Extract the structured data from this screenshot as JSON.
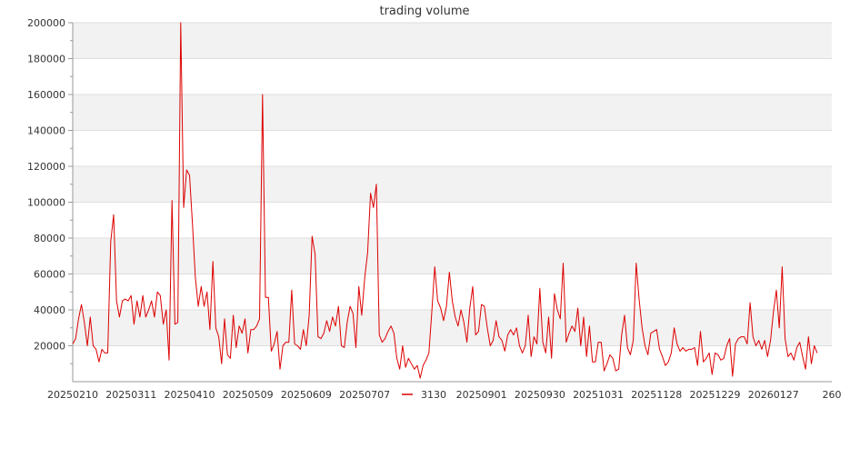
{
  "chart_data": {
    "type": "line",
    "title": "trading volume",
    "xlabel": "",
    "ylabel": "",
    "ylim": [
      0,
      200000
    ],
    "yticks": [
      20000,
      40000,
      60000,
      80000,
      100000,
      120000,
      140000,
      160000,
      180000,
      200000
    ],
    "xlim": [
      0,
      260
    ],
    "xtick_labels": [
      {
        "i": 0,
        "label": "20250210"
      },
      {
        "i": 20,
        "label": "20250311"
      },
      {
        "i": 40,
        "label": "20250410"
      },
      {
        "i": 60,
        "label": "20250509"
      },
      {
        "i": 80,
        "label": "20250609"
      },
      {
        "i": 100,
        "label": "20250707"
      },
      {
        "i": 140,
        "label": "20250901"
      },
      {
        "i": 160,
        "label": "20250930"
      },
      {
        "i": 180,
        "label": "20251031"
      },
      {
        "i": 200,
        "label": "20251128"
      },
      {
        "i": 220,
        "label": "20251229"
      },
      {
        "i": 240,
        "label": "20260127"
      },
      {
        "i": 260,
        "label": "260"
      }
    ],
    "grid": true,
    "legend_position": "bottom-center",
    "colors": {
      "line": "#dd0000",
      "band": "#f2f2f2",
      "grid": "#dddddd",
      "axis": "#999999"
    },
    "series": [
      {
        "name": "3130",
        "values": [
          21000,
          24000,
          35000,
          43000,
          33000,
          20000,
          36000,
          20000,
          18000,
          11000,
          18000,
          16000,
          16000,
          78000,
          93000,
          45000,
          36000,
          45000,
          46000,
          45000,
          48000,
          32000,
          45000,
          36000,
          48000,
          36000,
          40000,
          45000,
          36000,
          50000,
          48000,
          32000,
          40000,
          12000,
          101000,
          32000,
          33000,
          200000,
          97000,
          118000,
          115000,
          88000,
          58000,
          42000,
          53000,
          42000,
          50000,
          29000,
          67000,
          30000,
          25000,
          10000,
          35000,
          15000,
          13000,
          37000,
          19000,
          31000,
          27000,
          35000,
          16000,
          29000,
          29000,
          31000,
          35000,
          160000,
          47000,
          47000,
          17000,
          21000,
          28000,
          7000,
          20000,
          22000,
          22000,
          51000,
          21000,
          20000,
          18000,
          29000,
          20000,
          37000,
          81000,
          71000,
          25000,
          24000,
          27000,
          34000,
          28000,
          36000,
          31000,
          42000,
          20000,
          19000,
          33000,
          42000,
          38000,
          19000,
          53000,
          37000,
          58000,
          72000,
          105000,
          97000,
          110000,
          26000,
          22000,
          24000,
          28000,
          31000,
          27000,
          13000,
          7000,
          20000,
          8000,
          13000,
          10000,
          7000,
          9000,
          2000,
          9000,
          12000,
          16000,
          39000,
          64000,
          45000,
          41000,
          34000,
          42000,
          61000,
          45000,
          36000,
          31000,
          40000,
          33000,
          22000,
          41000,
          53000,
          26000,
          28000,
          43000,
          42000,
          30000,
          20000,
          23000,
          34000,
          25000,
          23000,
          17000,
          26000,
          29000,
          26000,
          30000,
          20000,
          16000,
          20000,
          37000,
          14000,
          25000,
          21000,
          52000,
          22000,
          16000,
          36000,
          13000,
          49000,
          40000,
          35000,
          66000,
          22000,
          27000,
          31000,
          28000,
          41000,
          20000,
          36000,
          14000,
          31000,
          11000,
          11000,
          22000,
          22000,
          6000,
          10000,
          15000,
          13000,
          6000,
          7000,
          26000,
          37000,
          19000,
          15000,
          23000,
          66000,
          46000,
          30000,
          20000,
          15000,
          27000,
          28000,
          29000,
          18000,
          14000,
          9000,
          11000,
          16000,
          30000,
          21000,
          17000,
          19000,
          17000,
          18000,
          18000,
          19000,
          9000,
          28000,
          11000,
          13000,
          16000,
          4000,
          16000,
          15000,
          12000,
          13000,
          20000,
          24000,
          3000,
          21000,
          24000,
          25000,
          25000,
          21000,
          44000,
          25000,
          20000,
          23000,
          18000,
          23000,
          14000,
          23000,
          39000,
          51000,
          30000,
          64000,
          24000,
          14000,
          16000,
          12000,
          19000,
          22000,
          14000,
          7000,
          25000,
          10000,
          20000,
          16000
        ]
      }
    ]
  }
}
